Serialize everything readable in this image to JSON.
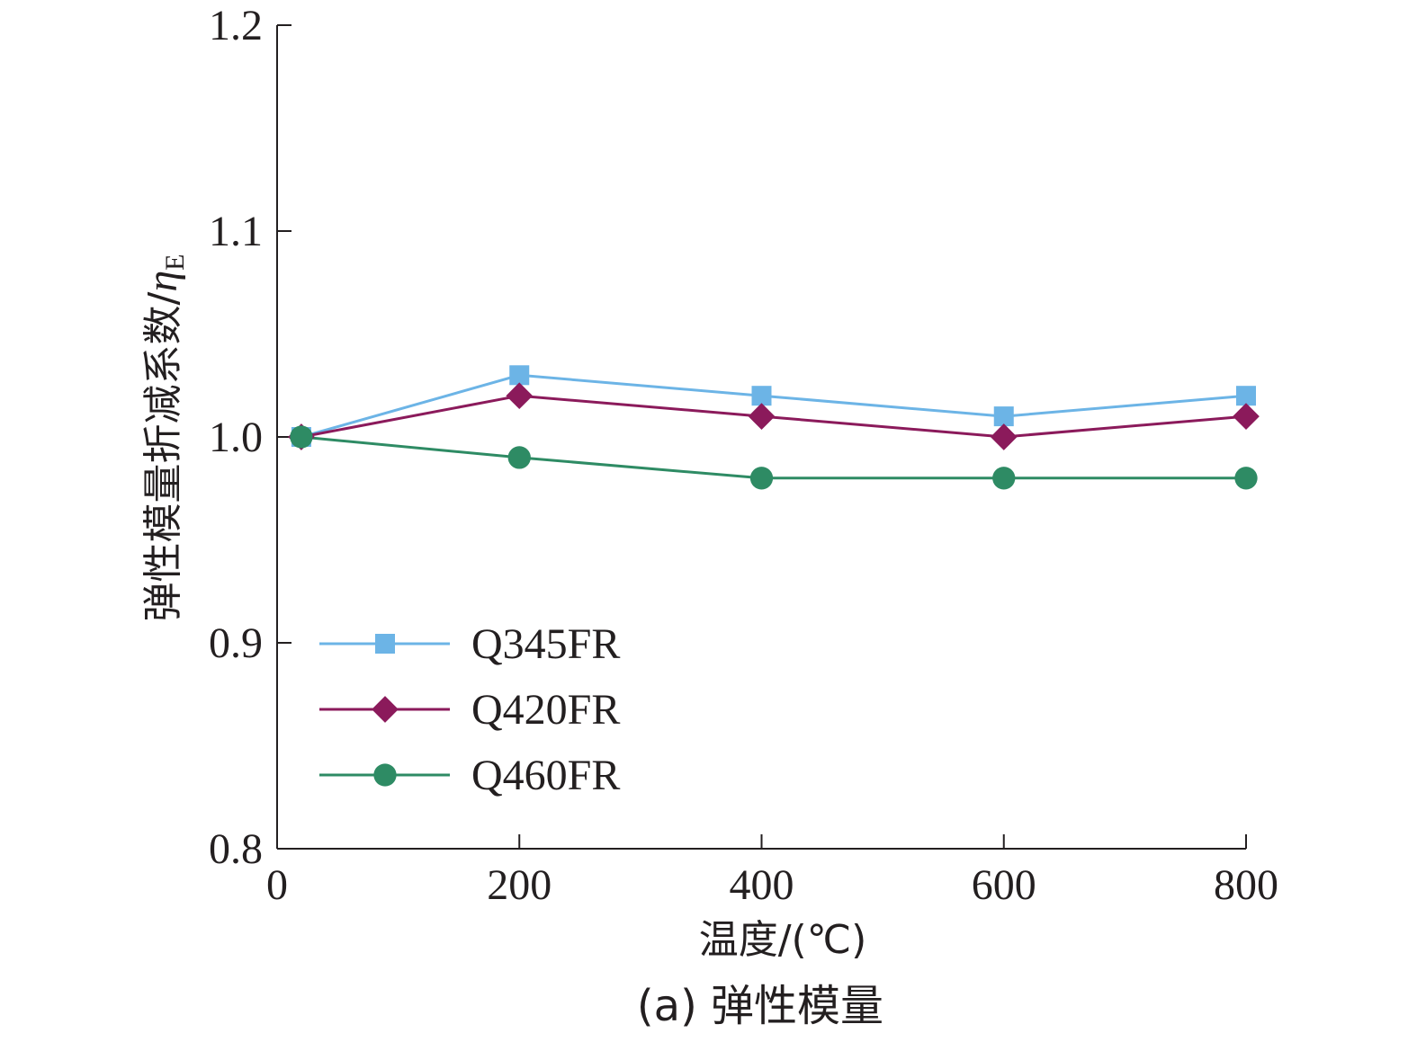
{
  "chart_data": {
    "type": "line",
    "caption": "(a) 弹性模量",
    "xlabel": "温度/(℃)",
    "ylabel_main": "弹性模量折减系数/",
    "ylabel_symbol": "η",
    "ylabel_subscript": "E",
    "xlim": [
      0,
      800
    ],
    "ylim": [
      0.8,
      1.2
    ],
    "x_ticks": [
      0,
      200,
      400,
      600,
      800
    ],
    "x_tick_labels": [
      "0",
      "200",
      "400",
      "600",
      "800"
    ],
    "y_ticks": [
      0.8,
      0.9,
      1.0,
      1.1,
      1.2
    ],
    "y_tick_labels": [
      "0.8",
      "0.9",
      "1.0",
      "1.1",
      "1.2"
    ],
    "x": [
      20,
      200,
      400,
      600,
      800
    ],
    "legend_position": "lower-left",
    "grid": false,
    "series": [
      {
        "name": "Q345FR",
        "values": [
          1.0,
          1.03,
          1.02,
          1.01,
          1.02
        ],
        "color": "#6cb4e6",
        "marker": "square"
      },
      {
        "name": "Q420FR",
        "values": [
          1.0,
          1.02,
          1.01,
          1.0,
          1.01
        ],
        "color": "#8b1a5b",
        "marker": "diamond"
      },
      {
        "name": "Q460FR",
        "values": [
          1.0,
          0.99,
          0.98,
          0.98,
          0.98
        ],
        "color": "#2e8b64",
        "marker": "circle"
      }
    ]
  }
}
